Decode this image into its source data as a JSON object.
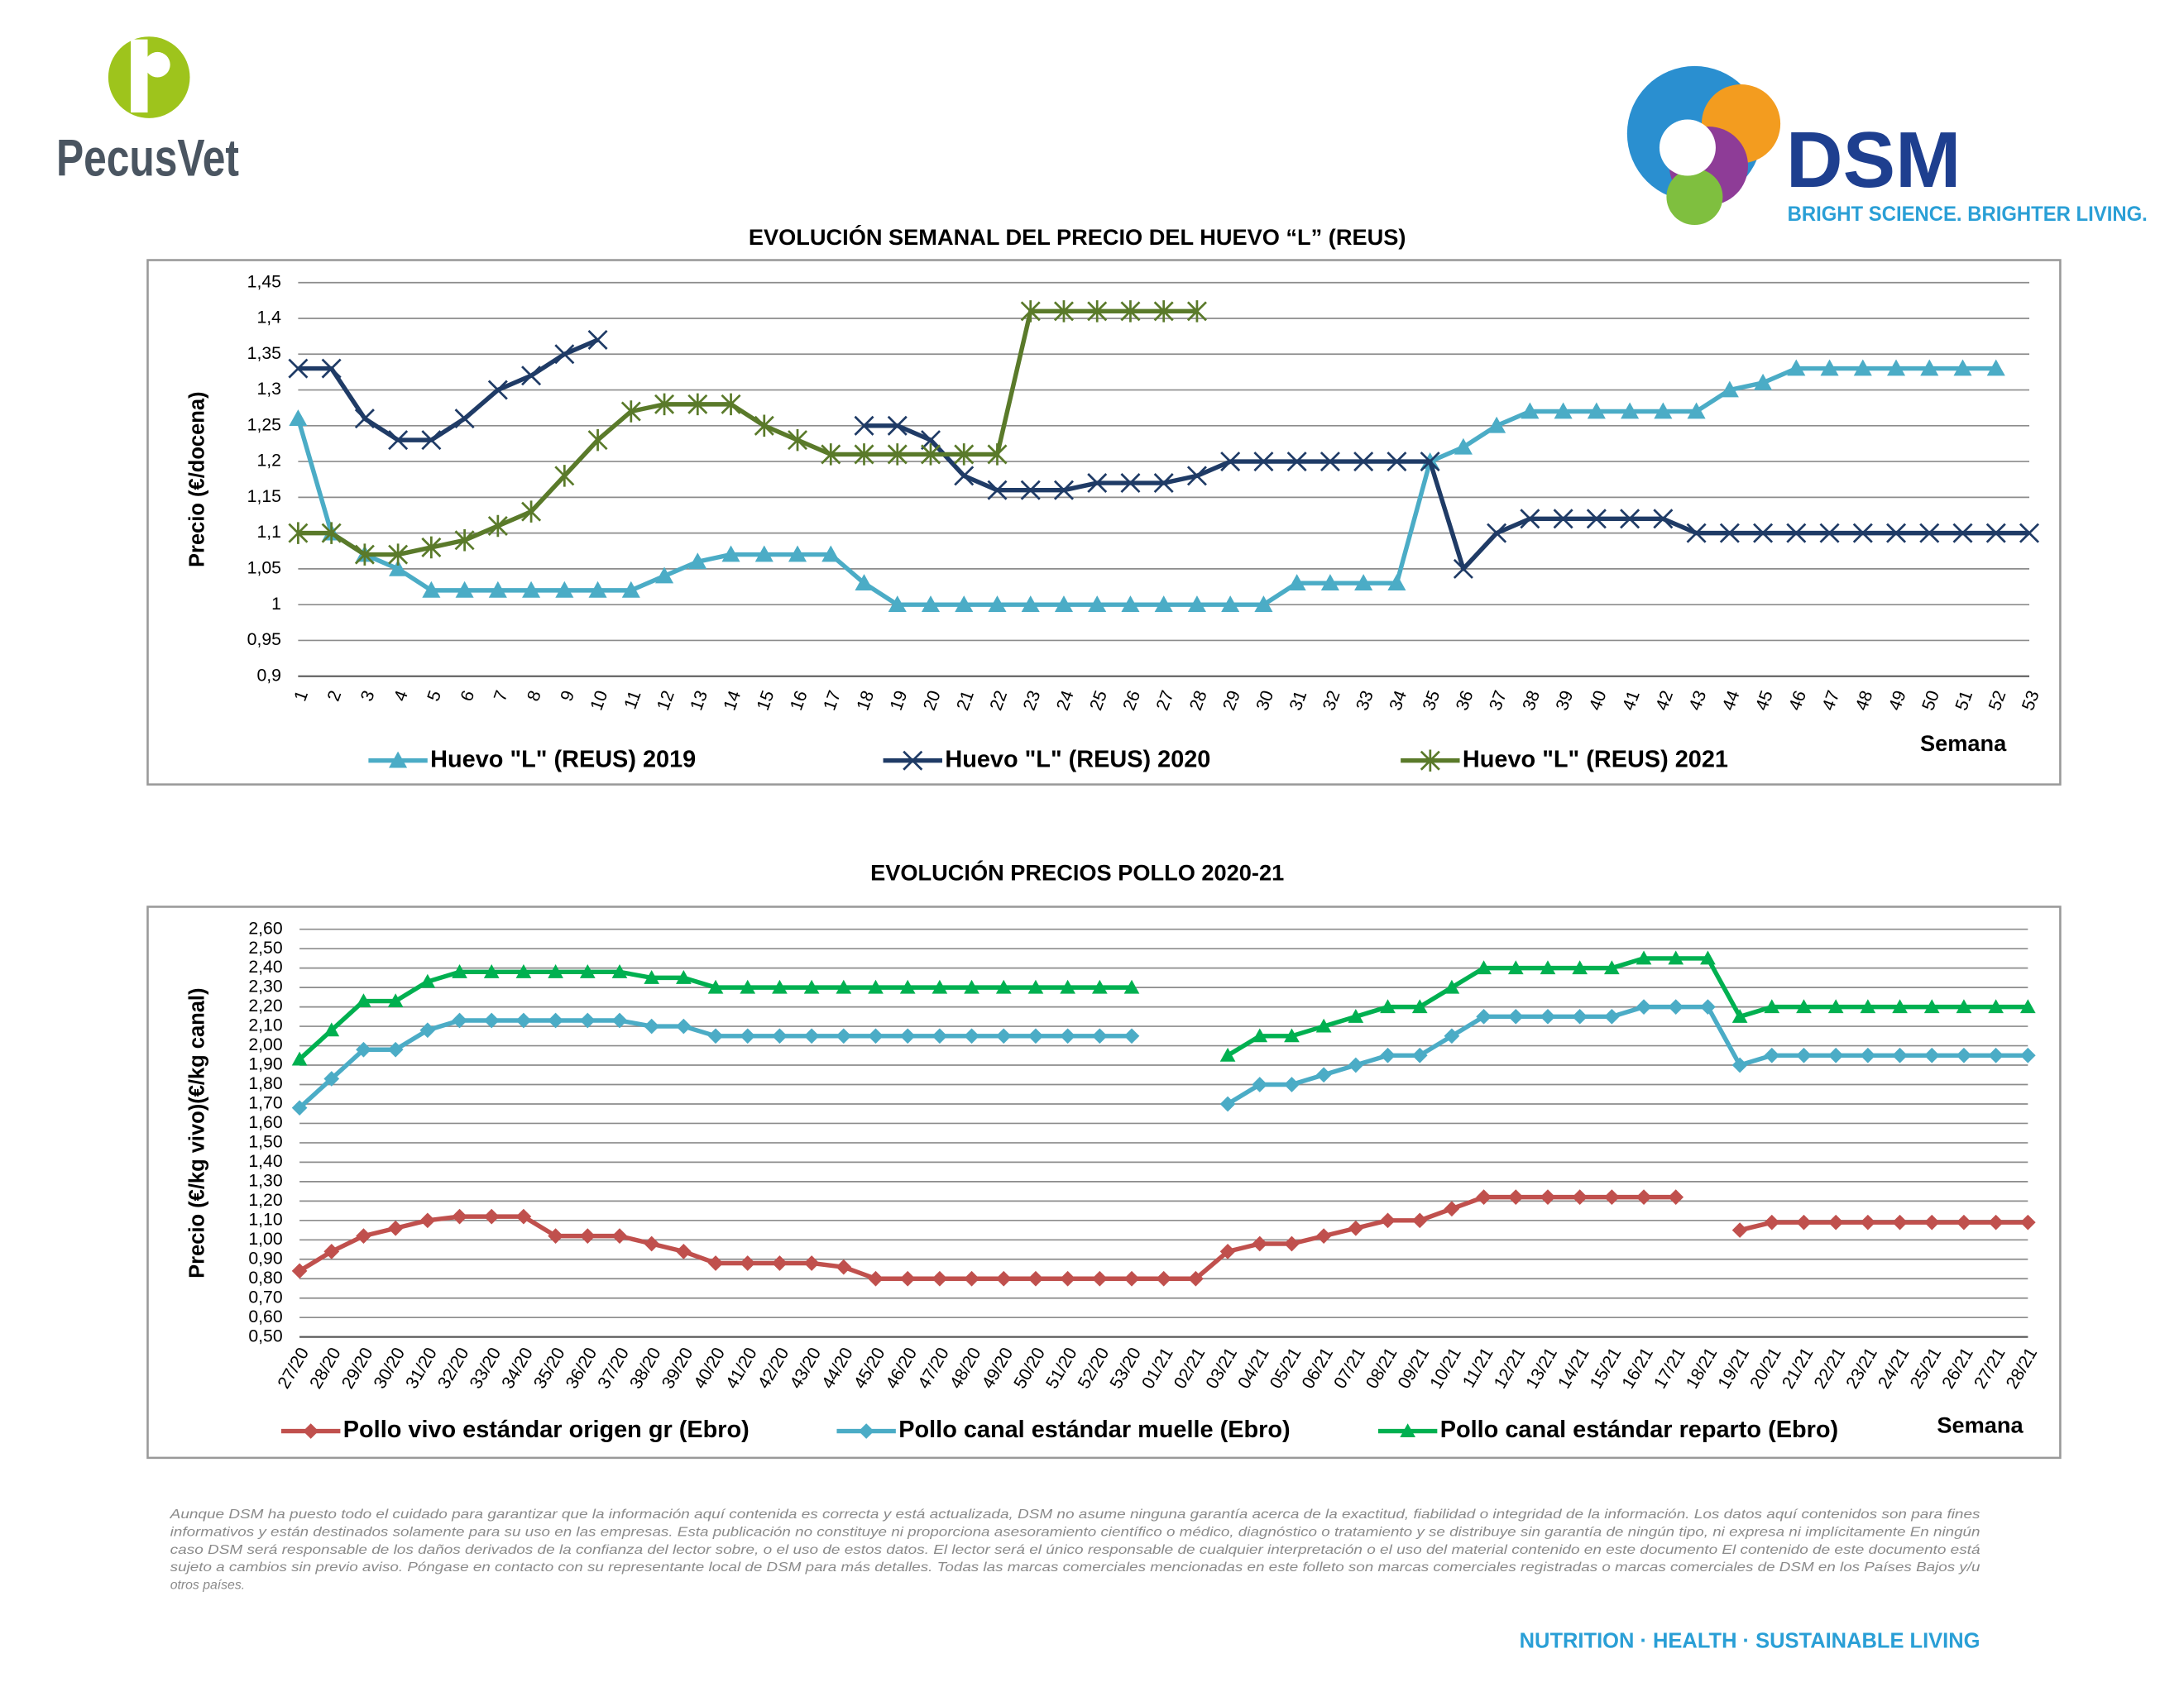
{
  "header": {
    "brand": "PecusVet",
    "company": "DSM",
    "tagline": "BRIGHT SCIENCE. BRIGHTER LIVING."
  },
  "chart_data": [
    {
      "type": "line",
      "title": "EVOLUCIÓN SEMANAL DEL PRECIO DEL HUEVO “L” (REUS)",
      "y_label": "Precio (€/docena)",
      "x_label": "Semana",
      "categories": [
        "1",
        "2",
        "3",
        "4",
        "5",
        "6",
        "7",
        "8",
        "9",
        "10",
        "11",
        "12",
        "13",
        "14",
        "15",
        "16",
        "17",
        "18",
        "19",
        "20",
        "21",
        "22",
        "23",
        "24",
        "25",
        "26",
        "27",
        "28",
        "29",
        "30",
        "31",
        "32",
        "33",
        "34",
        "35",
        "36",
        "37",
        "38",
        "39",
        "40",
        "41",
        "42",
        "43",
        "44",
        "45",
        "46",
        "47",
        "48",
        "49",
        "50",
        "51",
        "52",
        "53"
      ],
      "ylim": [
        0.9,
        1.45
      ],
      "yticks": [
        {
          "value": 0.9,
          "label": "0,9"
        },
        {
          "value": 0.95,
          "label": "0,95"
        },
        1,
        {
          "value": 1.05,
          "label": "1,05"
        },
        {
          "value": 1.1,
          "label": "1,1"
        },
        {
          "value": 1.15,
          "label": "1,15"
        },
        {
          "value": 1.2,
          "label": "1,2"
        },
        {
          "value": 1.25,
          "label": "1,25"
        },
        {
          "value": 1.3,
          "label": "1,3"
        },
        {
          "value": 1.35,
          "label": "1,35"
        },
        {
          "value": 1.4,
          "label": "1,4"
        },
        {
          "value": 1.45,
          "label": "1,45"
        }
      ],
      "grid": true,
      "legend": "bottom",
      "series": [
        {
          "name": "Huevo \"L\" (REUS) 2019",
          "color": "#4bacc6",
          "marker": "triangle",
          "values": [
            1.26,
            1.1,
            1.07,
            1.05,
            1.02,
            1.02,
            1.02,
            1.02,
            1.02,
            1.02,
            1.02,
            1.04,
            1.06,
            1.07,
            1.07,
            1.07,
            1.07,
            1.03,
            1.0,
            1.0,
            1.0,
            1.0,
            1.0,
            1.0,
            1.0,
            1.0,
            1.0,
            1.0,
            1.0,
            1.0,
            1.03,
            1.03,
            1.03,
            1.03,
            1.2,
            1.22,
            1.25,
            1.27,
            1.27,
            1.27,
            1.27,
            1.27,
            1.27,
            1.3,
            1.31,
            1.33,
            1.33,
            1.33,
            1.33,
            1.33,
            1.33,
            1.33,
            null
          ]
        },
        {
          "name": "Huevo \"L\" (REUS) 2020",
          "color": "#1f3b66",
          "marker": "x",
          "values": [
            1.33,
            1.33,
            1.26,
            1.23,
            1.23,
            1.26,
            1.3,
            1.32,
            1.35,
            1.37,
            null,
            null,
            null,
            null,
            null,
            null,
            null,
            1.25,
            1.25,
            1.23,
            1.18,
            1.16,
            1.16,
            1.16,
            1.17,
            1.17,
            1.17,
            1.18,
            1.2,
            1.2,
            1.2,
            1.2,
            1.2,
            1.2,
            1.2,
            1.05,
            1.1,
            1.12,
            1.12,
            1.12,
            1.12,
            1.12,
            1.1,
            1.1,
            1.1,
            1.1,
            1.1,
            1.1,
            1.1,
            1.1,
            1.1,
            1.1,
            1.1
          ]
        },
        {
          "name": "Huevo \"L\" (REUS) 2021",
          "color": "#5a7a2a",
          "marker": "asterisk",
          "values": [
            1.1,
            1.1,
            1.07,
            1.07,
            1.08,
            1.09,
            1.11,
            1.13,
            1.18,
            1.23,
            1.27,
            1.28,
            1.28,
            1.28,
            1.25,
            1.23,
            1.21,
            1.21,
            1.21,
            1.21,
            1.21,
            1.21,
            1.41,
            1.41,
            1.41,
            1.41,
            1.41,
            1.41,
            null,
            null,
            null,
            null,
            null,
            null,
            null,
            null,
            null,
            null,
            null,
            null,
            null,
            null,
            null,
            null,
            null,
            null,
            null,
            null,
            null,
            null,
            null,
            null,
            null
          ]
        }
      ]
    },
    {
      "type": "line",
      "title": "EVOLUCIÓN PRECIOS POLLO 2020-21",
      "y_label": "Precio (€/kg vivo)(€/kg canal)",
      "x_label": "Semana",
      "categories": [
        "27/20",
        "28/20",
        "29/20",
        "30/20",
        "31/20",
        "32/20",
        "33/20",
        "34/20",
        "35/20",
        "36/20",
        "37/20",
        "38/20",
        "39/20",
        "40/20",
        "41/20",
        "42/20",
        "43/20",
        "44/20",
        "45/20",
        "46/20",
        "47/20",
        "48/20",
        "49/20",
        "50/20",
        "51/20",
        "52/20",
        "53/20",
        "01/21",
        "02/21",
        "03/21",
        "04/21",
        "05/21",
        "06/21",
        "07/21",
        "08/21",
        "09/21",
        "10/21",
        "11/21",
        "12/21",
        "13/21",
        "14/21",
        "15/21",
        "16/21",
        "17/21",
        "18/21",
        "19/21",
        "20/21",
        "21/21",
        "22/21",
        "23/21",
        "24/21",
        "25/21",
        "26/21",
        "27/21",
        "28/21"
      ],
      "ylim": [
        0.5,
        2.6
      ],
      "yticks": [
        {
          "value": 0.5,
          "label": "0,50"
        },
        {
          "value": 0.6,
          "label": "0,60"
        },
        {
          "value": 0.7,
          "label": "0,70"
        },
        {
          "value": 0.8,
          "label": "0,80"
        },
        {
          "value": 0.9,
          "label": "0,90"
        },
        {
          "value": 1.0,
          "label": "1,00"
        },
        {
          "value": 1.1,
          "label": "1,10"
        },
        {
          "value": 1.2,
          "label": "1,20"
        },
        {
          "value": 1.3,
          "label": "1,30"
        },
        {
          "value": 1.4,
          "label": "1,40"
        },
        {
          "value": 1.5,
          "label": "1,50"
        },
        {
          "value": 1.6,
          "label": "1,60"
        },
        {
          "value": 1.7,
          "label": "1,70"
        },
        {
          "value": 1.8,
          "label": "1,80"
        },
        {
          "value": 1.9,
          "label": "1,90"
        },
        {
          "value": 2.0,
          "label": "2,00"
        },
        {
          "value": 2.1,
          "label": "2,10"
        },
        {
          "value": 2.2,
          "label": "2,20"
        },
        {
          "value": 2.3,
          "label": "2,30"
        },
        {
          "value": 2.4,
          "label": "2,40"
        },
        {
          "value": 2.5,
          "label": "2,50"
        },
        {
          "value": 2.6,
          "label": "2,60"
        }
      ],
      "grid": true,
      "legend": "bottom",
      "series": [
        {
          "name": "Pollo vivo estándar origen gr (Ebro)",
          "color": "#c0504d",
          "marker": "diamond",
          "values": [
            0.84,
            0.94,
            1.02,
            1.06,
            1.1,
            1.12,
            1.12,
            1.12,
            1.02,
            1.02,
            1.02,
            0.98,
            0.94,
            0.88,
            0.88,
            0.88,
            0.88,
            0.86,
            0.8,
            0.8,
            0.8,
            0.8,
            0.8,
            0.8,
            0.8,
            0.8,
            0.8,
            0.8,
            0.8,
            0.94,
            0.98,
            0.98,
            1.02,
            1.06,
            1.1,
            1.1,
            1.16,
            1.22,
            1.22,
            1.22,
            1.22,
            1.22,
            1.22,
            1.22,
            null,
            1.05,
            1.09,
            1.09,
            1.09,
            1.09,
            1.09,
            1.09,
            1.09,
            1.09,
            1.09
          ]
        },
        {
          "name": "Pollo canal estándar muelle (Ebro)",
          "color": "#4bacc6",
          "marker": "diamond",
          "values": [
            1.68,
            1.83,
            1.98,
            1.98,
            2.08,
            2.13,
            2.13,
            2.13,
            2.13,
            2.13,
            2.13,
            2.1,
            2.1,
            2.05,
            2.05,
            2.05,
            2.05,
            2.05,
            2.05,
            2.05,
            2.05,
            2.05,
            2.05,
            2.05,
            2.05,
            2.05,
            2.05,
            null,
            null,
            1.7,
            1.8,
            1.8,
            1.85,
            1.9,
            1.95,
            1.95,
            2.05,
            2.15,
            2.15,
            2.15,
            2.15,
            2.15,
            2.2,
            2.2,
            2.2,
            1.9,
            1.95,
            1.95,
            1.95,
            1.95,
            1.95,
            1.95,
            1.95,
            1.95,
            1.95
          ]
        },
        {
          "name": "Pollo canal estándar reparto (Ebro)",
          "color": "#00b050",
          "marker": "triangle",
          "values": [
            1.93,
            2.08,
            2.23,
            2.23,
            2.33,
            2.38,
            2.38,
            2.38,
            2.38,
            2.38,
            2.38,
            2.35,
            2.35,
            2.3,
            2.3,
            2.3,
            2.3,
            2.3,
            2.3,
            2.3,
            2.3,
            2.3,
            2.3,
            2.3,
            2.3,
            2.3,
            2.3,
            null,
            null,
            1.95,
            2.05,
            2.05,
            2.1,
            2.15,
            2.2,
            2.2,
            2.3,
            2.4,
            2.4,
            2.4,
            2.4,
            2.4,
            2.45,
            2.45,
            2.45,
            2.15,
            2.2,
            2.2,
            2.2,
            2.2,
            2.2,
            2.2,
            2.2,
            2.2,
            2.2
          ]
        }
      ]
    }
  ],
  "disclaimer": [
    "Aunque DSM ha puesto todo el cuidado para garantizar que la información aquí contenida es correcta y está actualizada, DSM no asume ninguna garantía acerca de la exactitud, fiabilidad o integridad de la información. Los datos aquí contenidos son para fines",
    "informativos y están destinados solamente para su uso en las empresas. Esta publicación no constituye ni proporciona asesoramiento científico o médico, diagnóstico o tratamiento y se distribuye sin garantía de ningún tipo, ni expresa ni implícitamente En ningún",
    "caso DSM será responsable de los daños derivados de la confianza del lector sobre, o el uso de estos datos. El lector será el único responsable de cualquier interpretación o el uso del material contenido en este documento El contenido de este documento está",
    "sujeto a cambios sin previo aviso. Póngase en contacto con su representante local de DSM para más detalles. Todas las marcas comerciales mencionadas en este folleto son marcas comerciales registradas o marcas comerciales de DSM en los Países Bajos y/u",
    "otros países."
  ],
  "footer": "NUTRITION · HEALTH · SUSTAINABLE LIVING"
}
